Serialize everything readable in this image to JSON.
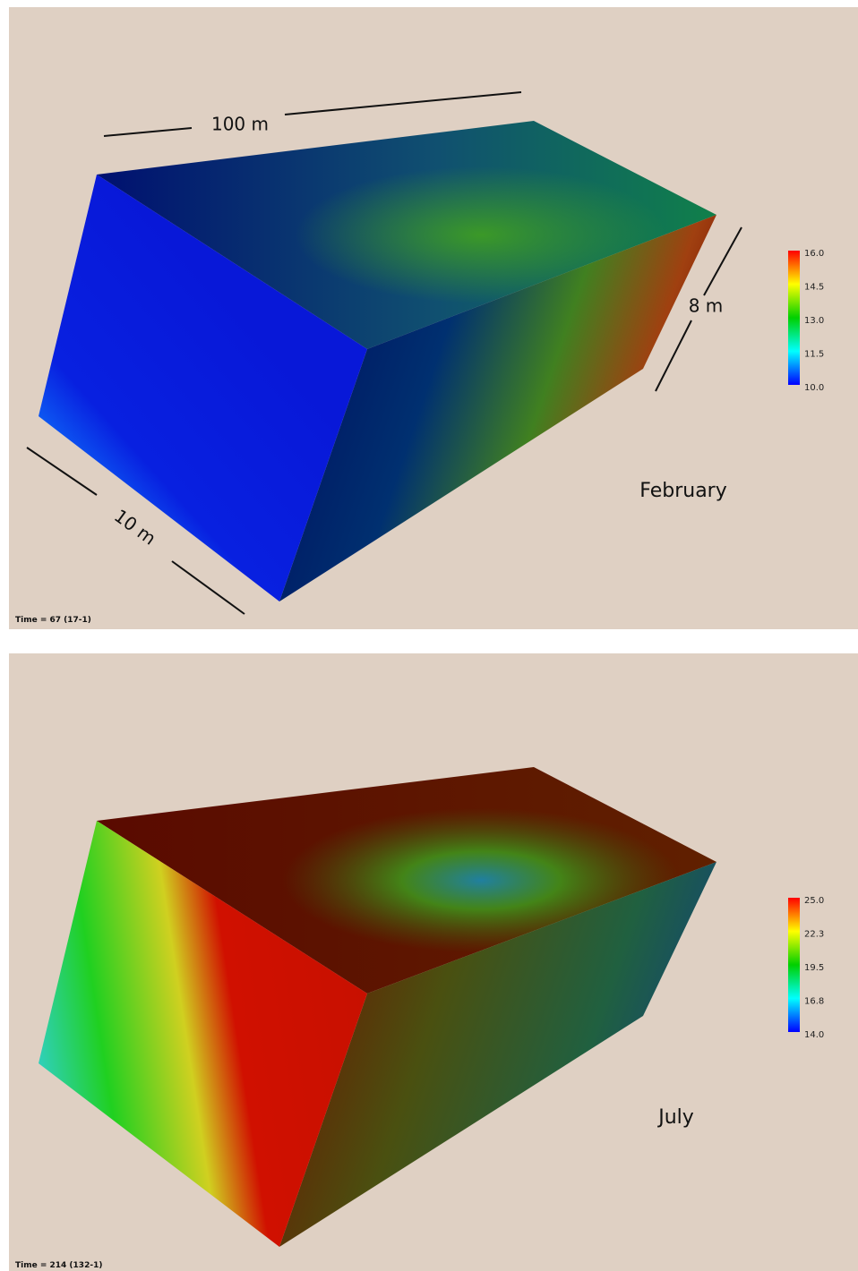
{
  "panels": [
    {
      "month": "February",
      "time": "Time = 67 (17-1)",
      "colorbar": {
        "ticks": [
          "16.0",
          "14.5",
          "13.0",
          "11.5",
          "10.0"
        ]
      },
      "dimensions": {
        "length": "100 m",
        "height": "8 m",
        "width": "10 m"
      }
    },
    {
      "month": "July",
      "time": "Time = 214 (132-1)",
      "colorbar": {
        "ticks": [
          "25.0",
          "22.3",
          "19.5",
          "16.8",
          "14.0"
        ]
      }
    }
  ]
}
